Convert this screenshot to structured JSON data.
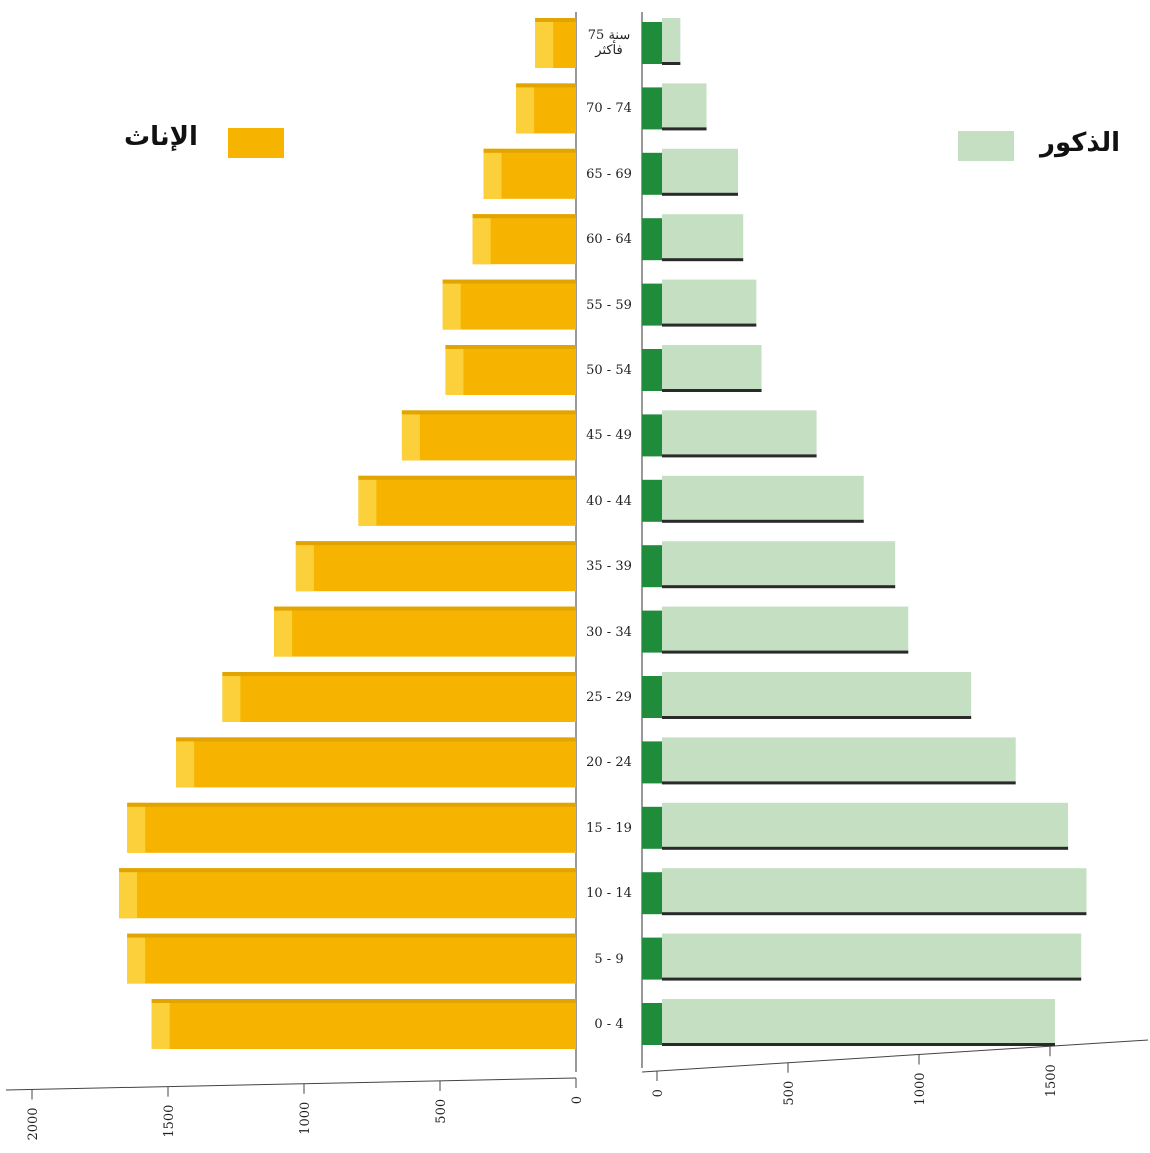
{
  "legend": {
    "female_label": "الإناث",
    "male_label": "الذكور",
    "female_color": "#f6b400",
    "male_color": "#c4dfc2"
  },
  "chart_data": {
    "type": "bar",
    "orientation": "horizontal",
    "layout": "population-pyramid",
    "title": "",
    "categories": [
      "75 سنة فأكثر",
      "70 - 74",
      "65 - 69",
      "60 - 64",
      "55 - 59",
      "50 - 54",
      "45 - 49",
      "40 - 44",
      "35 - 39",
      "30 - 34",
      "25 - 29",
      "20 - 24",
      "15 - 19",
      "10 - 14",
      "5 - 9",
      "0 - 4"
    ],
    "category_lines": [
      [
        "75 سنة",
        "فأكثر"
      ],
      [
        "70 - 74"
      ],
      [
        "65 - 69"
      ],
      [
        "60 - 64"
      ],
      [
        "55 - 59"
      ],
      [
        "50 - 54"
      ],
      [
        "45 - 49"
      ],
      [
        "40 - 44"
      ],
      [
        "35 - 39"
      ],
      [
        "30 - 34"
      ],
      [
        "25 - 29"
      ],
      [
        "20 - 24"
      ],
      [
        "15 - 19"
      ],
      [
        "10 - 14"
      ],
      [
        "5 - 9"
      ],
      [
        "0 - 4"
      ]
    ],
    "series": [
      {
        "name": "الإناث",
        "color": "#f6b400",
        "side": "left",
        "values": [
          150,
          220,
          340,
          380,
          490,
          480,
          640,
          800,
          1030,
          1110,
          1300,
          1470,
          1650,
          1680,
          1650,
          1560
        ]
      },
      {
        "name": "الذكور",
        "color": "#c4dfc2",
        "side": "right",
        "values": [
          70,
          170,
          290,
          310,
          360,
          380,
          590,
          770,
          890,
          940,
          1180,
          1350,
          1550,
          1620,
          1600,
          1500
        ]
      }
    ],
    "female_axis": {
      "ticks": [
        0,
        500,
        1000,
        1500,
        2000
      ],
      "range": [
        0,
        2100
      ]
    },
    "male_axis": {
      "ticks": [
        0,
        500,
        1000,
        1500
      ],
      "range": [
        0,
        1850
      ]
    },
    "grid": false,
    "legend_position": "top"
  }
}
